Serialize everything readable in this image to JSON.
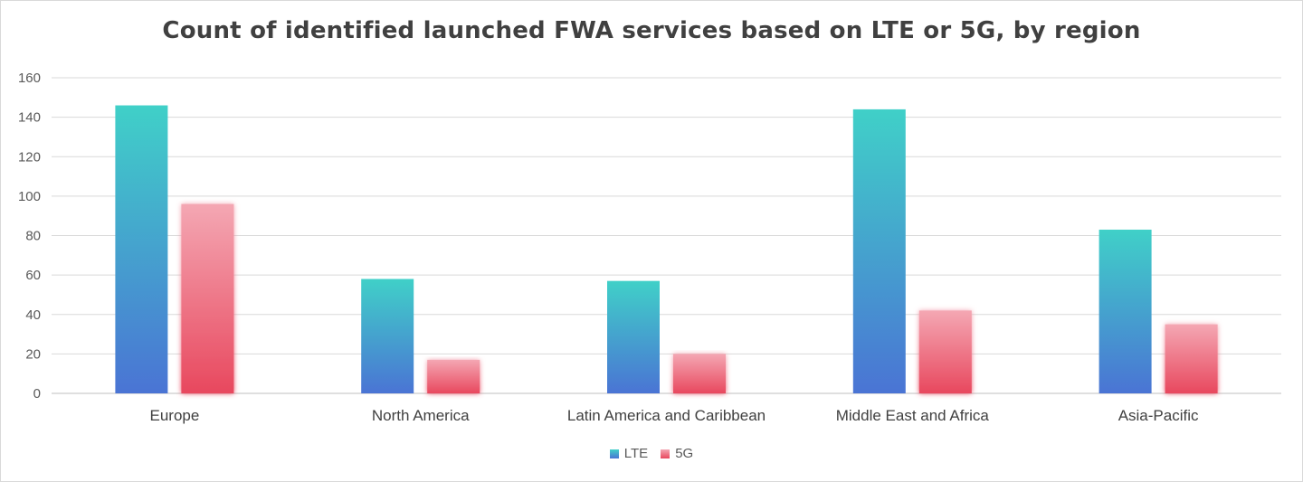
{
  "chart_data": {
    "type": "bar",
    "title": "Count of identified launched FWA services based on LTE or 5G, by region",
    "categories": [
      "Europe",
      "North America",
      "Latin America and Caribbean",
      "Middle East and Africa",
      "Asia-Pacific"
    ],
    "series": [
      {
        "name": "LTE",
        "values": [
          146,
          58,
          57,
          144,
          83
        ],
        "color_top": "#40d0c8",
        "color_bottom": "#4a74d4"
      },
      {
        "name": "5G",
        "values": [
          96,
          17,
          20,
          42,
          35
        ],
        "color_top": "#f4a7b3",
        "color_bottom": "#e8485e"
      }
    ],
    "ylim": [
      0,
      160
    ],
    "yticks": [
      0,
      20,
      40,
      60,
      80,
      100,
      120,
      140,
      160
    ],
    "grid": true,
    "legend_position": "bottom-center"
  }
}
